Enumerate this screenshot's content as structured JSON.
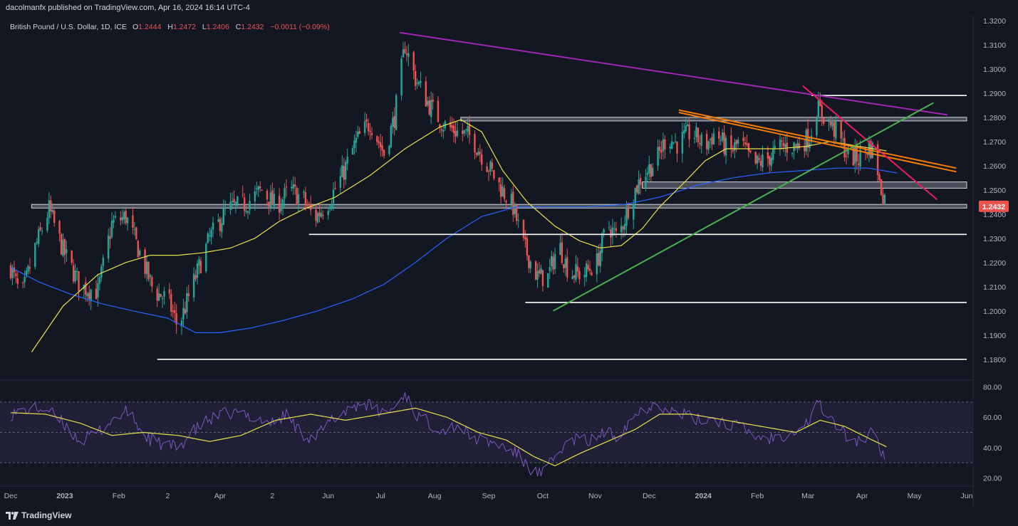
{
  "header": {
    "published_by": "dacolmanfx published on TradingView.com, Apr 16, 2024 16:14 UTC-4"
  },
  "footer": {
    "brand": "TradingView"
  },
  "colors": {
    "background": "#131722",
    "up": "#26a69a",
    "down": "#ef5350",
    "sma_fast": "#e9e04a",
    "sma_slow": "#2962ff",
    "rsi": "#7e57c2",
    "rsi_ma": "#e9e04a",
    "trend_purple": "#9c27b0",
    "trend_orange": "#f57c00",
    "trend_pink": "#e91e63",
    "trend_green": "#4caf50",
    "price_tag": "#ef5350",
    "level": "#ffffff",
    "zone": "#787b86"
  },
  "chart_data": {
    "type": "candlestick",
    "symbol": "British Pound / U.S. Dollar, 1D, ICE",
    "ohlc": {
      "open_label": "O",
      "open": "1.2444",
      "high_label": "H",
      "high": "1.2472",
      "low_label": "L",
      "low": "1.2406",
      "close_label": "C",
      "close": "1.2432",
      "change": "−0.0011 (−0.09%)"
    },
    "last_price": "1.2432",
    "price_axis": {
      "min": 1.172,
      "max": 1.322,
      "ticks": [
        "1.3200",
        "1.3100",
        "1.3000",
        "1.2900",
        "1.2800",
        "1.2700",
        "1.2600",
        "1.2500",
        "1.2400",
        "1.2300",
        "1.2200",
        "1.2100",
        "1.2000",
        "1.1900",
        "1.1800"
      ]
    },
    "rsi_axis": {
      "min": 16,
      "max": 84,
      "ticks": [
        "80.00",
        "60.00",
        "40.00",
        "20.00"
      ],
      "overbought": 70,
      "midline": 50,
      "oversold": 30
    },
    "time_axis": {
      "labels": [
        "Dec",
        "2023",
        "Feb",
        "2",
        "Apr",
        "2",
        "Jun",
        "Jul",
        "Aug",
        "Sep",
        "Oct",
        "Nov",
        "Dec",
        "2024",
        "Feb",
        "Mar",
        "Apr",
        "May",
        "Jun"
      ],
      "bold_labels": [
        "2023",
        "2024"
      ],
      "day_index": [
        0,
        31,
        62,
        90,
        120,
        150,
        182,
        212,
        243,
        274,
        305,
        335,
        366,
        397,
        428,
        457,
        488,
        518,
        548
      ]
    },
    "anchors": [
      {
        "d": 0,
        "p": 1.218
      },
      {
        "d": 6,
        "p": 1.205
      },
      {
        "d": 14,
        "p": 1.226
      },
      {
        "d": 22,
        "p": 1.242
      },
      {
        "d": 30,
        "p": 1.225
      },
      {
        "d": 40,
        "p": 1.21
      },
      {
        "d": 50,
        "p": 1.208
      },
      {
        "d": 58,
        "p": 1.236
      },
      {
        "d": 66,
        "p": 1.239
      },
      {
        "d": 74,
        "p": 1.224
      },
      {
        "d": 82,
        "p": 1.208
      },
      {
        "d": 90,
        "p": 1.205
      },
      {
        "d": 96,
        "p": 1.193
      },
      {
        "d": 104,
        "p": 1.21
      },
      {
        "d": 114,
        "p": 1.23
      },
      {
        "d": 124,
        "p": 1.242
      },
      {
        "d": 134,
        "p": 1.244
      },
      {
        "d": 144,
        "p": 1.25
      },
      {
        "d": 152,
        "p": 1.243
      },
      {
        "d": 160,
        "p": 1.25
      },
      {
        "d": 168,
        "p": 1.246
      },
      {
        "d": 174,
        "p": 1.238
      },
      {
        "d": 182,
        "p": 1.245
      },
      {
        "d": 190,
        "p": 1.256
      },
      {
        "d": 198,
        "p": 1.27
      },
      {
        "d": 206,
        "p": 1.278
      },
      {
        "d": 214,
        "p": 1.265
      },
      {
        "d": 220,
        "p": 1.28
      },
      {
        "d": 226,
        "p": 1.31
      },
      {
        "d": 232,
        "p": 1.296
      },
      {
        "d": 240,
        "p": 1.285
      },
      {
        "d": 248,
        "p": 1.277
      },
      {
        "d": 256,
        "p": 1.274
      },
      {
        "d": 264,
        "p": 1.272
      },
      {
        "d": 272,
        "p": 1.262
      },
      {
        "d": 280,
        "p": 1.252
      },
      {
        "d": 288,
        "p": 1.243
      },
      {
        "d": 294,
        "p": 1.227
      },
      {
        "d": 302,
        "p": 1.214
      },
      {
        "d": 308,
        "p": 1.214
      },
      {
        "d": 314,
        "p": 1.228
      },
      {
        "d": 320,
        "p": 1.216
      },
      {
        "d": 328,
        "p": 1.215
      },
      {
        "d": 336,
        "p": 1.22
      },
      {
        "d": 342,
        "p": 1.236
      },
      {
        "d": 348,
        "p": 1.23
      },
      {
        "d": 356,
        "p": 1.247
      },
      {
        "d": 362,
        "p": 1.256
      },
      {
        "d": 370,
        "p": 1.262
      },
      {
        "d": 376,
        "p": 1.272
      },
      {
        "d": 382,
        "p": 1.269
      },
      {
        "d": 390,
        "p": 1.274
      },
      {
        "d": 398,
        "p": 1.268
      },
      {
        "d": 404,
        "p": 1.274
      },
      {
        "d": 412,
        "p": 1.265
      },
      {
        "d": 418,
        "p": 1.27
      },
      {
        "d": 426,
        "p": 1.26
      },
      {
        "d": 434,
        "p": 1.263
      },
      {
        "d": 442,
        "p": 1.268
      },
      {
        "d": 450,
        "p": 1.268
      },
      {
        "d": 458,
        "p": 1.272
      },
      {
        "d": 462,
        "p": 1.284
      },
      {
        "d": 468,
        "p": 1.279
      },
      {
        "d": 474,
        "p": 1.273
      },
      {
        "d": 480,
        "p": 1.264
      },
      {
        "d": 486,
        "p": 1.263
      },
      {
        "d": 492,
        "p": 1.268
      },
      {
        "d": 496,
        "p": 1.265
      },
      {
        "d": 498,
        "p": 1.252
      },
      {
        "d": 502,
        "p": 1.245
      },
      {
        "d": 503,
        "p": 1.2432
      }
    ],
    "sma_fast_points": [
      {
        "d": 12,
        "p": 1.183
      },
      {
        "d": 30,
        "p": 1.202
      },
      {
        "d": 50,
        "p": 1.215
      },
      {
        "d": 66,
        "p": 1.22
      },
      {
        "d": 80,
        "p": 1.223
      },
      {
        "d": 96,
        "p": 1.223
      },
      {
        "d": 110,
        "p": 1.224
      },
      {
        "d": 126,
        "p": 1.226
      },
      {
        "d": 140,
        "p": 1.23
      },
      {
        "d": 154,
        "p": 1.237
      },
      {
        "d": 168,
        "p": 1.242
      },
      {
        "d": 186,
        "p": 1.247
      },
      {
        "d": 206,
        "p": 1.256
      },
      {
        "d": 226,
        "p": 1.267
      },
      {
        "d": 246,
        "p": 1.276
      },
      {
        "d": 258,
        "p": 1.279
      },
      {
        "d": 270,
        "p": 1.274
      },
      {
        "d": 282,
        "p": 1.258
      },
      {
        "d": 296,
        "p": 1.245
      },
      {
        "d": 312,
        "p": 1.235
      },
      {
        "d": 326,
        "p": 1.229
      },
      {
        "d": 338,
        "p": 1.226
      },
      {
        "d": 350,
        "p": 1.227
      },
      {
        "d": 362,
        "p": 1.234
      },
      {
        "d": 372,
        "p": 1.243
      },
      {
        "d": 386,
        "p": 1.253
      },
      {
        "d": 398,
        "p": 1.262
      },
      {
        "d": 410,
        "p": 1.267
      },
      {
        "d": 424,
        "p": 1.267
      },
      {
        "d": 440,
        "p": 1.267
      },
      {
        "d": 456,
        "p": 1.268
      },
      {
        "d": 470,
        "p": 1.27
      },
      {
        "d": 486,
        "p": 1.268
      },
      {
        "d": 503,
        "p": 1.266
      }
    ],
    "sma_slow_points": [
      {
        "d": 0,
        "p": 1.218
      },
      {
        "d": 16,
        "p": 1.212
      },
      {
        "d": 34,
        "p": 1.207
      },
      {
        "d": 52,
        "p": 1.203
      },
      {
        "d": 70,
        "p": 1.2
      },
      {
        "d": 90,
        "p": 1.197
      },
      {
        "d": 106,
        "p": 1.191
      },
      {
        "d": 120,
        "p": 1.191
      },
      {
        "d": 138,
        "p": 1.193
      },
      {
        "d": 156,
        "p": 1.196
      },
      {
        "d": 176,
        "p": 1.2
      },
      {
        "d": 196,
        "p": 1.205
      },
      {
        "d": 214,
        "p": 1.211
      },
      {
        "d": 232,
        "p": 1.22
      },
      {
        "d": 250,
        "p": 1.23
      },
      {
        "d": 270,
        "p": 1.239
      },
      {
        "d": 290,
        "p": 1.243
      },
      {
        "d": 310,
        "p": 1.243
      },
      {
        "d": 330,
        "p": 1.243
      },
      {
        "d": 352,
        "p": 1.244
      },
      {
        "d": 372,
        "p": 1.247
      },
      {
        "d": 394,
        "p": 1.252
      },
      {
        "d": 414,
        "p": 1.255
      },
      {
        "d": 434,
        "p": 1.257
      },
      {
        "d": 454,
        "p": 1.258
      },
      {
        "d": 474,
        "p": 1.259
      },
      {
        "d": 492,
        "p": 1.259
      },
      {
        "d": 508,
        "p": 1.257
      }
    ],
    "rsi_anchors": [
      {
        "d": 0,
        "v": 62
      },
      {
        "d": 10,
        "v": 65
      },
      {
        "d": 20,
        "v": 66
      },
      {
        "d": 30,
        "v": 56
      },
      {
        "d": 40,
        "v": 44
      },
      {
        "d": 50,
        "v": 50
      },
      {
        "d": 60,
        "v": 60
      },
      {
        "d": 68,
        "v": 64
      },
      {
        "d": 76,
        "v": 48
      },
      {
        "d": 86,
        "v": 42
      },
      {
        "d": 96,
        "v": 40
      },
      {
        "d": 104,
        "v": 50
      },
      {
        "d": 112,
        "v": 57
      },
      {
        "d": 122,
        "v": 62
      },
      {
        "d": 130,
        "v": 63
      },
      {
        "d": 140,
        "v": 60
      },
      {
        "d": 150,
        "v": 56
      },
      {
        "d": 158,
        "v": 62
      },
      {
        "d": 166,
        "v": 50
      },
      {
        "d": 174,
        "v": 46
      },
      {
        "d": 184,
        "v": 58
      },
      {
        "d": 194,
        "v": 66
      },
      {
        "d": 202,
        "v": 70
      },
      {
        "d": 212,
        "v": 63
      },
      {
        "d": 220,
        "v": 66
      },
      {
        "d": 226,
        "v": 76
      },
      {
        "d": 232,
        "v": 62
      },
      {
        "d": 240,
        "v": 56
      },
      {
        "d": 248,
        "v": 52
      },
      {
        "d": 256,
        "v": 55
      },
      {
        "d": 264,
        "v": 47
      },
      {
        "d": 272,
        "v": 44
      },
      {
        "d": 280,
        "v": 42
      },
      {
        "d": 290,
        "v": 36
      },
      {
        "d": 298,
        "v": 26
      },
      {
        "d": 304,
        "v": 22
      },
      {
        "d": 310,
        "v": 30
      },
      {
        "d": 316,
        "v": 40
      },
      {
        "d": 324,
        "v": 46
      },
      {
        "d": 332,
        "v": 44
      },
      {
        "d": 340,
        "v": 50
      },
      {
        "d": 348,
        "v": 48
      },
      {
        "d": 356,
        "v": 60
      },
      {
        "d": 364,
        "v": 66
      },
      {
        "d": 370,
        "v": 70
      },
      {
        "d": 378,
        "v": 64
      },
      {
        "d": 386,
        "v": 62
      },
      {
        "d": 394,
        "v": 58
      },
      {
        "d": 402,
        "v": 60
      },
      {
        "d": 410,
        "v": 56
      },
      {
        "d": 418,
        "v": 54
      },
      {
        "d": 426,
        "v": 48
      },
      {
        "d": 434,
        "v": 46
      },
      {
        "d": 442,
        "v": 48
      },
      {
        "d": 450,
        "v": 52
      },
      {
        "d": 458,
        "v": 58
      },
      {
        "d": 462,
        "v": 70
      },
      {
        "d": 468,
        "v": 62
      },
      {
        "d": 474,
        "v": 54
      },
      {
        "d": 480,
        "v": 46
      },
      {
        "d": 488,
        "v": 44
      },
      {
        "d": 494,
        "v": 50
      },
      {
        "d": 498,
        "v": 40
      },
      {
        "d": 503,
        "v": 32
      }
    ],
    "rsi_ma_points": [
      {
        "d": 0,
        "v": 63
      },
      {
        "d": 20,
        "v": 62
      },
      {
        "d": 40,
        "v": 56
      },
      {
        "d": 58,
        "v": 48
      },
      {
        "d": 76,
        "v": 50
      },
      {
        "d": 96,
        "v": 48
      },
      {
        "d": 114,
        "v": 44
      },
      {
        "d": 132,
        "v": 48
      },
      {
        "d": 152,
        "v": 58
      },
      {
        "d": 172,
        "v": 62
      },
      {
        "d": 192,
        "v": 58
      },
      {
        "d": 212,
        "v": 62
      },
      {
        "d": 232,
        "v": 66
      },
      {
        "d": 250,
        "v": 60
      },
      {
        "d": 268,
        "v": 50
      },
      {
        "d": 284,
        "v": 45
      },
      {
        "d": 300,
        "v": 34
      },
      {
        "d": 312,
        "v": 28
      },
      {
        "d": 326,
        "v": 36
      },
      {
        "d": 342,
        "v": 44
      },
      {
        "d": 358,
        "v": 52
      },
      {
        "d": 372,
        "v": 62
      },
      {
        "d": 390,
        "v": 62
      },
      {
        "d": 410,
        "v": 58
      },
      {
        "d": 430,
        "v": 54
      },
      {
        "d": 450,
        "v": 50
      },
      {
        "d": 464,
        "v": 58
      },
      {
        "d": 478,
        "v": 54
      },
      {
        "d": 492,
        "v": 46
      },
      {
        "d": 503,
        "v": 40
      }
    ],
    "horizontal_levels": [
      {
        "p": 1.289,
        "d_start": 459,
        "d_end": 548
      },
      {
        "p": 1.2316,
        "d_start": 171,
        "d_end": 548
      },
      {
        "p": 1.2035,
        "d_start": 295,
        "d_end": 548
      },
      {
        "p": 1.18,
        "d_start": 84,
        "d_end": 548
      }
    ],
    "zones": [
      {
        "p_top": 1.28,
        "p_bottom": 1.2785,
        "d_start": 258,
        "d_end": 548
      },
      {
        "p_top": 1.2533,
        "p_bottom": 1.2507,
        "d_start": 362,
        "d_end": 548
      },
      {
        "p_top": 1.244,
        "p_bottom": 1.2425,
        "d_start": 12,
        "d_end": 548
      }
    ],
    "trendlines": [
      {
        "name": "purple-resistance",
        "color_key": "trend_purple",
        "d1": 223,
        "p1": 1.315,
        "d2": 537,
        "p2": 1.281
      },
      {
        "name": "orange-channel-upper",
        "color_key": "trend_orange",
        "d1": 383,
        "p1": 1.283,
        "d2": 542,
        "p2": 1.259
      },
      {
        "name": "orange-channel-lower",
        "color_key": "trend_orange",
        "d1": 383,
        "p1": 1.282,
        "d2": 542,
        "p2": 1.2575
      },
      {
        "name": "pink-downtrend",
        "color_key": "trend_pink",
        "d1": 454,
        "p1": 1.293,
        "d2": 531,
        "p2": 1.246
      },
      {
        "name": "green-uptrend",
        "color_key": "trend_green",
        "d1": 311,
        "p1": 1.2,
        "d2": 529,
        "p2": 1.286
      }
    ]
  }
}
